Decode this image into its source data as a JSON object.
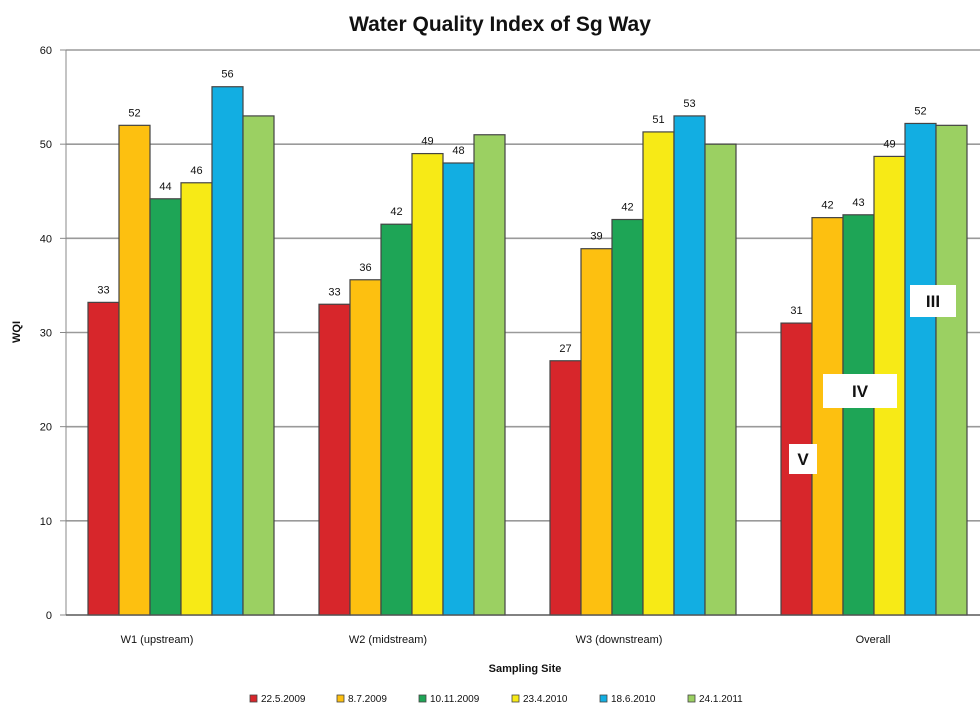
{
  "chart_data": {
    "type": "bar",
    "title": "Water Quality Index of Sg Way",
    "xlabel": "Sampling Site",
    "ylabel": "WQI",
    "ylim": [
      0,
      60
    ],
    "yticks": [
      0,
      10,
      20,
      30,
      40,
      50,
      60
    ],
    "grid": true,
    "legend_position": "bottom",
    "categories": [
      "W1 (upstream)",
      "W2 (midstream)",
      "W3 (downstream)",
      "Overall"
    ],
    "series": [
      {
        "name": "22.5.2009",
        "color": "#d7262b",
        "values": [
          33.2,
          33.0,
          27.0,
          31.0
        ],
        "labels": [
          "33",
          "33",
          "27",
          "31"
        ]
      },
      {
        "name": "8.7.2009",
        "color": "#fdc010",
        "values": [
          52.0,
          35.6,
          38.9,
          42.2
        ],
        "labels": [
          "52",
          "36",
          "39",
          "42"
        ]
      },
      {
        "name": "10.11.2009",
        "color": "#1ea556",
        "values": [
          44.2,
          41.5,
          42.0,
          42.5
        ],
        "labels": [
          "44",
          "42",
          "42",
          "43"
        ]
      },
      {
        "name": "23.4.2010",
        "color": "#f7ea16",
        "values": [
          45.9,
          49.0,
          51.3,
          48.7
        ],
        "labels": [
          "46",
          "49",
          "51",
          "49"
        ]
      },
      {
        "name": "18.6.2010",
        "color": "#12aee2",
        "values": [
          56.1,
          48.0,
          53.0,
          52.2
        ],
        "labels": [
          "56",
          "48",
          "53",
          "52"
        ]
      },
      {
        "name": "24.1.2011",
        "color": "#9bd062",
        "values": [
          53.0,
          51.0,
          50.0,
          52.0
        ],
        "labels": [
          null,
          null,
          null,
          null
        ]
      }
    ],
    "annotations": [
      "V",
      "IV",
      "III"
    ]
  }
}
